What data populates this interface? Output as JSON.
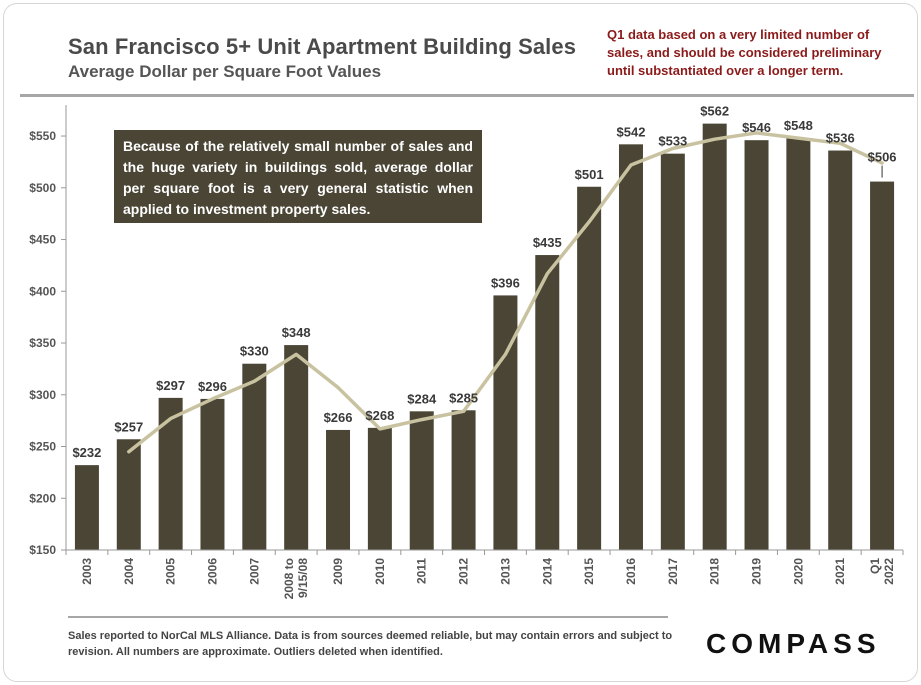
{
  "header": {
    "title": "San Francisco 5+ Unit Apartment Building Sales",
    "subtitle": "Average Dollar per Square Foot Values",
    "note": "Q1 data based on a very limited number of sales, and should be considered preliminary until substantiated over a longer term."
  },
  "callout": "Because of the relatively small number of sales and the huge variety in buildings sold, average dollar per square foot is a very general statistic when applied to investment property sales.",
  "footer": {
    "text": "Sales reported to NorCal MLS Alliance. Data is from sources deemed reliable, but may contain errors and subject to revision. All numbers are approximate.  Outliers deleted when identified.",
    "logo": "COMPASS"
  },
  "colors": {
    "bar": "#4a4535",
    "trend_line": "#c8c2a0",
    "axis": "#999999",
    "note_text": "#8b1a1a"
  },
  "chart_data": {
    "type": "bar",
    "categories": [
      "2003",
      "2004",
      "2005",
      "2006",
      "2007",
      "2008 to 9/15/08",
      "2009",
      "2010",
      "2011",
      "2012",
      "2013",
      "2014",
      "2015",
      "2016",
      "2017",
      "2018",
      "2019",
      "2020",
      "2021",
      "Q1 2022"
    ],
    "values": [
      232,
      257,
      297,
      296,
      330,
      348,
      266,
      268,
      284,
      285,
      396,
      435,
      501,
      542,
      533,
      562,
      546,
      548,
      536,
      506
    ],
    "value_labels": [
      "$232",
      "$257",
      "$297",
      "$296",
      "$330",
      "$348",
      "$266",
      "$268",
      "$284",
      "$285",
      "$396",
      "$435",
      "$501",
      "$542",
      "$533",
      "$562",
      "$546",
      "$548",
      "$536",
      "$506"
    ],
    "trend_line": [
      null,
      245,
      277,
      296,
      313,
      339,
      307,
      267,
      276,
      284,
      339,
      417,
      467,
      522,
      538,
      547,
      553,
      548,
      543,
      524
    ],
    "ylim": [
      150,
      580
    ],
    "yticks": [
      150,
      200,
      250,
      300,
      350,
      400,
      450,
      500,
      550
    ],
    "ytick_labels": [
      "$150",
      "$200",
      "$250",
      "$300",
      "$350",
      "$400",
      "$450",
      "$500",
      "$550"
    ],
    "xlabel": "",
    "ylabel": "",
    "grid": false,
    "legend": "none"
  }
}
